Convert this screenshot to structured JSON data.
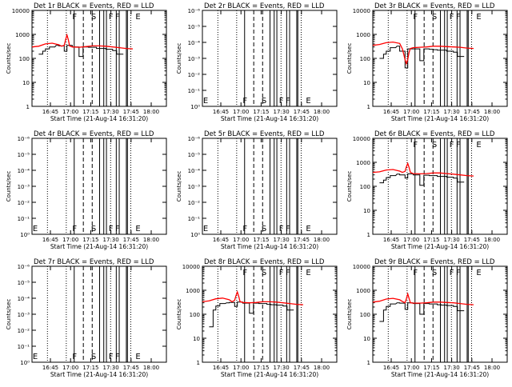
{
  "figure": {
    "xtick_labels": [
      "16:45",
      "17:00",
      "17:15",
      "17:30",
      "17:45",
      "18:00"
    ],
    "xlabel": "Start Time (21-Aug-14 16:31:20)",
    "ylabel": "Counts/sec",
    "log_tick_labels": [
      "1",
      "10",
      "100",
      "1000",
      "10000"
    ],
    "exp_tick_labels": [
      "10⁰",
      "10⁻¹",
      "10⁻²",
      "10⁻³",
      "10⁻⁴",
      "10⁻⁵",
      "10⁻⁶"
    ],
    "colors": {
      "events": "#000000",
      "lld": "#ff0000"
    }
  },
  "chart_data": [
    {
      "type": "line",
      "title": "Det 1r BLACK = Events, RED = LLD",
      "yscale": "log",
      "ylim": [
        1,
        10000
      ],
      "has_data": true,
      "markers": [
        "F",
        "S",
        "F",
        "F",
        "E"
      ],
      "series": [
        {
          "name": "Events",
          "x": [
            0,
            3,
            5,
            5,
            8,
            8,
            10,
            10,
            13,
            13,
            17,
            18,
            20,
            20,
            24,
            24,
            26,
            26,
            30,
            30,
            33,
            34,
            35,
            35,
            38,
            38,
            40,
            40,
            42,
            42,
            45,
            45,
            48,
            48,
            51,
            51,
            55,
            55,
            60,
            60,
            63,
            63,
            68,
            68,
            70
          ],
          "y": [
            null,
            null,
            null,
            150,
            150,
            200,
            200,
            250,
            250,
            300,
            300,
            350,
            350,
            330,
            330,
            200,
            200,
            350,
            350,
            300,
            300,
            300,
            300,
            120,
            120,
            300,
            300,
            300,
            300,
            290,
            290,
            290,
            290,
            260,
            260,
            260,
            260,
            240,
            240,
            210,
            210,
            150,
            150,
            null,
            null
          ]
        },
        {
          "name": "LLD",
          "x": [
            0,
            5,
            10,
            15,
            20,
            22,
            24,
            25,
            26,
            27,
            28,
            30,
            35,
            40,
            45,
            50,
            55,
            60,
            65,
            70,
            75
          ],
          "y": [
            300,
            320,
            400,
            430,
            370,
            320,
            350,
            600,
            950,
            600,
            330,
            300,
            290,
            310,
            330,
            330,
            320,
            300,
            280,
            260,
            250
          ]
        }
      ]
    },
    {
      "type": "line",
      "title": "Det 2r BLACK = Events, RED = LLD",
      "yscale": "exp",
      "has_data": false,
      "markers": [
        "E",
        "F",
        "S",
        "F",
        "F",
        "E"
      ],
      "series": []
    },
    {
      "type": "line",
      "title": "Det 3r BLACK = Events, RED = LLD",
      "yscale": "log",
      "ylim": [
        1,
        10000
      ],
      "has_data": true,
      "markers": [
        "F",
        "S",
        "F",
        "F",
        "E"
      ],
      "series": [
        {
          "name": "Events",
          "x": [
            0,
            3,
            5,
            5,
            8,
            8,
            10,
            10,
            13,
            13,
            17,
            18,
            20,
            20,
            24,
            24,
            26,
            26,
            30,
            30,
            33,
            34,
            35,
            35,
            38,
            38,
            40,
            40,
            42,
            42,
            45,
            45,
            48,
            48,
            51,
            51,
            55,
            55,
            60,
            60,
            63,
            63,
            68,
            68,
            70
          ],
          "y": [
            null,
            null,
            null,
            100,
            100,
            150,
            150,
            200,
            200,
            280,
            280,
            320,
            320,
            200,
            200,
            40,
            40,
            250,
            250,
            250,
            250,
            250,
            250,
            80,
            80,
            250,
            250,
            250,
            250,
            240,
            240,
            230,
            230,
            220,
            220,
            220,
            220,
            200,
            200,
            180,
            180,
            120,
            120,
            null,
            null
          ]
        },
        {
          "name": "LLD",
          "x": [
            0,
            5,
            10,
            15,
            20,
            22,
            24,
            25,
            26,
            27,
            28,
            30,
            35,
            40,
            45,
            50,
            55,
            60,
            65,
            70,
            75
          ],
          "y": [
            350,
            380,
            450,
            480,
            420,
            250,
            90,
            60,
            90,
            180,
            260,
            280,
            290,
            300,
            320,
            320,
            310,
            300,
            290,
            270,
            260
          ]
        }
      ]
    },
    {
      "type": "line",
      "title": "Det 4r BLACK = Events, RED = LLD",
      "yscale": "exp",
      "has_data": false,
      "markers": [
        "E",
        "F",
        "S",
        "F",
        "F",
        "E"
      ],
      "series": []
    },
    {
      "type": "line",
      "title": "Det 5r BLACK = Events, RED = LLD",
      "yscale": "exp",
      "has_data": false,
      "markers": [
        "E",
        "F",
        "S",
        "F",
        "F",
        "E"
      ],
      "series": []
    },
    {
      "type": "line",
      "title": "Det 6r BLACK = Events, RED = LLD",
      "yscale": "log",
      "ylim": [
        1,
        10000
      ],
      "has_data": true,
      "markers": [
        "F",
        "S",
        "F",
        "F",
        "E"
      ],
      "series": [
        {
          "name": "Events",
          "x": [
            0,
            3,
            5,
            5,
            8,
            8,
            10,
            10,
            13,
            13,
            17,
            18,
            20,
            20,
            24,
            24,
            26,
            26,
            30,
            30,
            33,
            34,
            35,
            35,
            38,
            38,
            40,
            40,
            42,
            42,
            45,
            45,
            48,
            48,
            51,
            51,
            55,
            55,
            60,
            60,
            63,
            63,
            68,
            68,
            70
          ],
          "y": [
            null,
            null,
            null,
            140,
            140,
            180,
            180,
            230,
            230,
            280,
            280,
            320,
            320,
            300,
            300,
            220,
            220,
            330,
            330,
            300,
            300,
            300,
            300,
            110,
            110,
            290,
            290,
            290,
            290,
            280,
            280,
            280,
            280,
            260,
            260,
            260,
            260,
            240,
            240,
            220,
            220,
            150,
            150,
            null,
            null
          ]
        },
        {
          "name": "LLD",
          "x": [
            0,
            5,
            10,
            15,
            20,
            22,
            24,
            25,
            26,
            27,
            28,
            30,
            35,
            40,
            45,
            50,
            55,
            60,
            65,
            70,
            75
          ],
          "y": [
            380,
            400,
            480,
            500,
            430,
            380,
            420,
            650,
            900,
            600,
            380,
            340,
            330,
            340,
            360,
            360,
            340,
            320,
            300,
            280,
            270
          ]
        }
      ]
    },
    {
      "type": "line",
      "title": "Det 7r BLACK = Events, RED = LLD",
      "yscale": "exp",
      "has_data": false,
      "markers": [
        "E",
        "F",
        "S",
        "F",
        "F",
        "E"
      ],
      "series": []
    },
    {
      "type": "line",
      "title": "Det 8r BLACK = Events, RED = LLD",
      "yscale": "log",
      "ylim": [
        1,
        10000
      ],
      "has_data": true,
      "markers": [
        "F",
        "S",
        "F",
        "F",
        "E"
      ],
      "series": [
        {
          "name": "Events",
          "x": [
            0,
            3,
            5,
            5,
            8,
            8,
            10,
            10,
            13,
            13,
            17,
            18,
            20,
            20,
            24,
            24,
            26,
            26,
            30,
            30,
            33,
            34,
            35,
            35,
            38,
            38,
            40,
            40,
            42,
            42,
            45,
            45,
            48,
            48,
            51,
            51,
            55,
            55,
            60,
            60,
            63,
            63,
            68,
            68,
            70
          ],
          "y": [
            null,
            null,
            null,
            30,
            30,
            150,
            150,
            220,
            220,
            280,
            280,
            300,
            300,
            310,
            310,
            210,
            210,
            320,
            320,
            290,
            290,
            290,
            290,
            110,
            110,
            290,
            290,
            290,
            290,
            280,
            280,
            280,
            280,
            260,
            260,
            250,
            250,
            240,
            240,
            220,
            220,
            150,
            150,
            null,
            null
          ]
        },
        {
          "name": "LLD",
          "x": [
            0,
            5,
            10,
            15,
            20,
            22,
            24,
            25,
            26,
            27,
            28,
            30,
            35,
            40,
            45,
            50,
            55,
            60,
            65,
            70,
            75
          ],
          "y": [
            330,
            360,
            440,
            470,
            400,
            330,
            380,
            600,
            850,
            560,
            340,
            310,
            300,
            310,
            330,
            330,
            320,
            300,
            280,
            260,
            250
          ]
        }
      ]
    },
    {
      "type": "line",
      "title": "Det 9r BLACK = Events, RED = LLD",
      "yscale": "log",
      "ylim": [
        1,
        10000
      ],
      "has_data": true,
      "markers": [
        "F",
        "S",
        "F",
        "F",
        "E"
      ],
      "series": [
        {
          "name": "Events",
          "x": [
            0,
            3,
            5,
            5,
            8,
            8,
            10,
            10,
            13,
            13,
            17,
            18,
            20,
            20,
            24,
            24,
            26,
            26,
            30,
            30,
            33,
            34,
            35,
            35,
            38,
            38,
            40,
            40,
            42,
            42,
            45,
            45,
            48,
            48,
            51,
            51,
            55,
            55,
            60,
            60,
            63,
            63,
            68,
            68,
            70
          ],
          "y": [
            null,
            null,
            null,
            50,
            50,
            150,
            150,
            210,
            210,
            270,
            270,
            300,
            300,
            290,
            290,
            160,
            160,
            300,
            300,
            280,
            280,
            280,
            280,
            100,
            100,
            280,
            280,
            280,
            280,
            270,
            270,
            270,
            270,
            250,
            250,
            240,
            240,
            230,
            230,
            210,
            210,
            140,
            140,
            null,
            null
          ]
        },
        {
          "name": "LLD",
          "x": [
            0,
            5,
            10,
            15,
            20,
            22,
            24,
            25,
            26,
            27,
            28,
            30,
            35,
            40,
            45,
            50,
            55,
            60,
            65,
            70,
            75
          ],
          "y": [
            320,
            350,
            430,
            460,
            400,
            340,
            300,
            450,
            700,
            450,
            300,
            290,
            290,
            300,
            320,
            320,
            310,
            300,
            280,
            260,
            250
          ]
        }
      ]
    }
  ]
}
